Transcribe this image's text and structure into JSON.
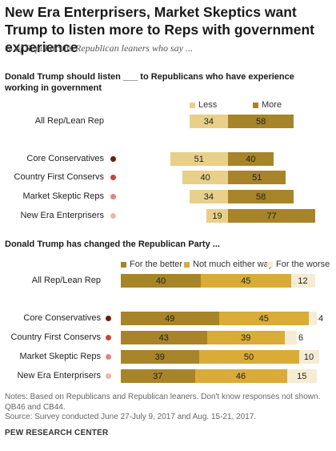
{
  "title": "New Era Enterprisers, Market Skeptics want Trump to listen more to Reps with government experience",
  "subtitle": "% of Republicans/Republican leaners who say ...",
  "notes": "Notes: Based on Republicans and Republican leaners. Don't know responses not shown. QB46 and CB44.",
  "source": "Source: Survey conducted June 27-July 9, 2017 and Aug. 15-21, 2017.",
  "credit": "PEW RESEARCH CENTER",
  "chart_data": [
    {
      "type": "bar",
      "stacked": true,
      "orientation": "horizontal",
      "title": "Donald Trump should listen ___ to Republicans who have experience working in government",
      "categories": [
        "All Rep/Lean Rep",
        "Core Conservatives",
        "Country First Conservs",
        "Market Skeptic Reps",
        "New Era Enterprisers"
      ],
      "category_dot_colors": [
        null,
        "#6b1f0e",
        "#c8463b",
        "#e0867b",
        "#f0b5ac"
      ],
      "series": [
        {
          "name": "Less",
          "color": "#e8d08a",
          "values": [
            34,
            51,
            40,
            34,
            19
          ]
        },
        {
          "name": "More",
          "color": "#a7842a",
          "values": [
            58,
            40,
            51,
            58,
            77
          ]
        }
      ],
      "legend_position": "top"
    },
    {
      "type": "bar",
      "stacked": true,
      "orientation": "horizontal",
      "title": "Donald Trump has changed the Republican Party ...",
      "categories": [
        "All Rep/Lean Rep",
        "Core Conservatives",
        "Country First Conservs",
        "Market Skeptic Reps",
        "New Era Enterprisers"
      ],
      "category_dot_colors": [
        null,
        "#6b1f0e",
        "#c8463b",
        "#e0867b",
        "#f0b5ac"
      ],
      "series": [
        {
          "name": "For the better",
          "color": "#a7842a",
          "values": [
            40,
            49,
            43,
            39,
            37
          ]
        },
        {
          "name": "Not much either way",
          "color": "#d8ac36",
          "values": [
            45,
            45,
            39,
            50,
            46
          ]
        },
        {
          "name": "For the worse",
          "color": "#f5ecd3",
          "values": [
            12,
            4,
            6,
            10,
            15
          ]
        }
      ],
      "legend_position": "top"
    }
  ]
}
